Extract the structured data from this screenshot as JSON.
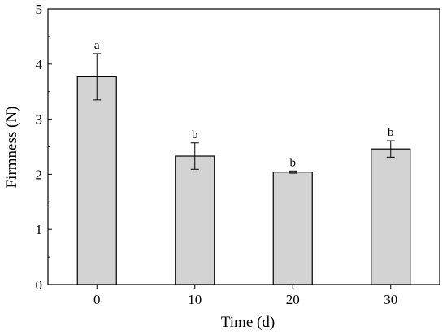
{
  "chart_data": {
    "type": "bar",
    "categories": [
      "0",
      "10",
      "20",
      "30"
    ],
    "values": [
      3.77,
      2.33,
      2.04,
      2.46
    ],
    "errors": [
      0.42,
      0.24,
      0.02,
      0.15
    ],
    "significance_letters": [
      "a",
      "b",
      "b",
      "b"
    ],
    "xlabel": "Time (d)",
    "ylabel": "Firmness (N)",
    "ylim": [
      0,
      5
    ],
    "yticks": [
      "0",
      "1",
      "2",
      "3",
      "4",
      "5"
    ],
    "grid": false,
    "bar_color": "#d3d3d3",
    "edge_color": "#000000"
  }
}
